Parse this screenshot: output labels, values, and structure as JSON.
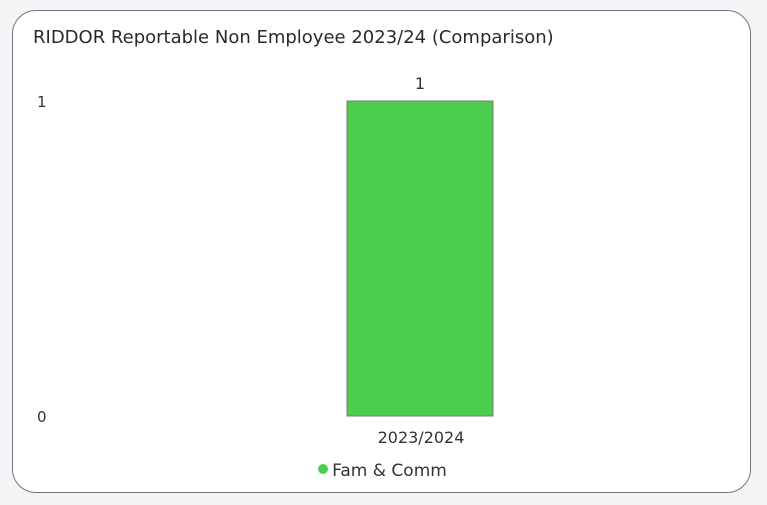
{
  "chart_data": {
    "type": "bar",
    "title": "RIDDOR Reportable Non Employee 2023/24 (Comparison)",
    "categories": [
      "2023/2024"
    ],
    "series": [
      {
        "name": "Fam & Comm",
        "values": [
          1
        ],
        "color": "#4ccd4c"
      }
    ],
    "ylim": [
      0,
      1
    ],
    "yticks": [
      0,
      1
    ],
    "data_labels": true,
    "grid": false,
    "legend_position": "bottom"
  }
}
